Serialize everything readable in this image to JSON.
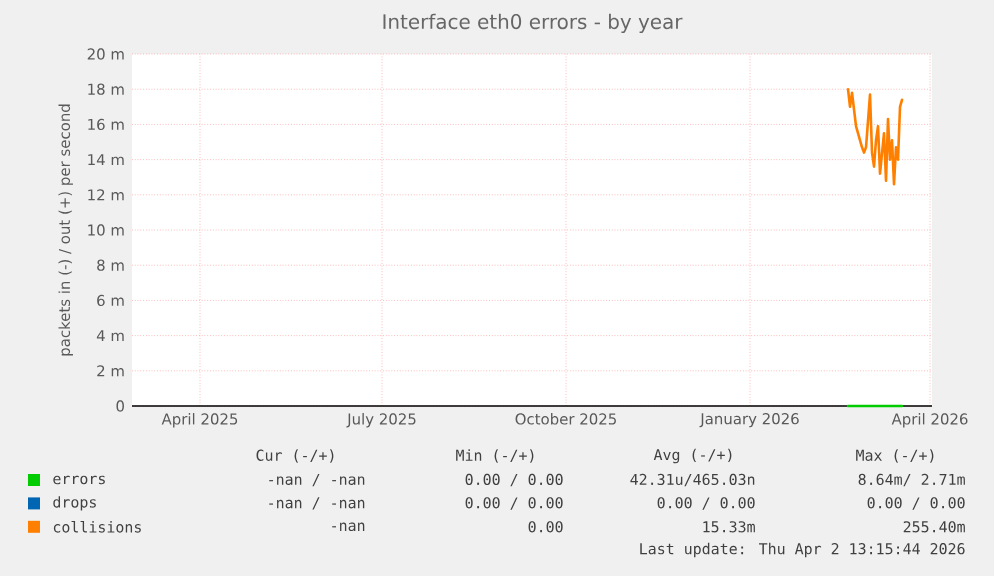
{
  "chart_data": {
    "type": "line",
    "title": "Interface eth0 errors - by year",
    "ylabel": "packets in (-) / out (+) per second",
    "xlim": [
      "2025-03-12",
      "2026-04-16"
    ],
    "xticks": [
      {
        "value": "2025-04-15",
        "label": "April 2025"
      },
      {
        "value": "2025-07-15",
        "label": "July 2025"
      },
      {
        "value": "2025-10-15",
        "label": "October 2025"
      },
      {
        "value": "2026-01-15",
        "label": "January 2026"
      },
      {
        "value": "2026-04-15",
        "label": "April 2026"
      }
    ],
    "ylim": [
      0,
      20
    ],
    "yticks": [
      0,
      {
        "value": 2,
        "label": "2 m"
      },
      {
        "value": 4,
        "label": "4 m"
      },
      {
        "value": 6,
        "label": "6 m"
      },
      {
        "value": 8,
        "label": "8 m"
      },
      {
        "value": 10,
        "label": "10 m"
      },
      {
        "value": 12,
        "label": "12 m"
      },
      {
        "value": 14,
        "label": "14 m"
      },
      {
        "value": 16,
        "label": "16 m"
      },
      {
        "value": 18,
        "label": "18 m"
      },
      {
        "value": 20,
        "label": "20 m"
      }
    ],
    "grid": true,
    "legend": "bottom",
    "marker": "none",
    "line_style": "solid",
    "series": [
      {
        "name": "errors",
        "color": "#00cc00",
        "x": [
          "2026-03-05",
          "2026-04-01"
        ],
        "values": [
          0,
          0
        ]
      },
      {
        "name": "drops",
        "color": "#0066b3"
      },
      {
        "name": "collisions",
        "color": "#ff8000",
        "x": [
          "2026-03-05",
          "2026-03-06",
          "2026-03-07",
          "2026-03-09",
          "2026-03-10",
          "2026-03-12",
          "2026-03-13",
          "2026-03-14",
          "2026-03-16",
          "2026-03-17",
          "2026-03-18",
          "2026-03-19",
          "2026-03-20",
          "2026-03-21",
          "2026-03-23",
          "2026-03-24",
          "2026-03-25",
          "2026-03-26",
          "2026-03-27",
          "2026-03-28",
          "2026-03-29",
          "2026-03-30",
          "2026-03-31",
          "2026-04-01"
        ],
        "values": [
          18.0,
          17.0,
          17.8,
          15.9,
          15.5,
          14.7,
          14.4,
          14.7,
          17.7,
          14.4,
          13.6,
          15.1,
          15.9,
          13.2,
          15.5,
          12.8,
          16.3,
          14.0,
          15.1,
          12.6,
          14.7,
          14.0,
          17.0,
          17.4
        ]
      }
    ],
    "annotations": [
      "Cur (-/+)",
      "Min (-/+)",
      "Avg (-/+)",
      "Max (-/+)",
      "-nan / -nan",
      "0.00 / 0.00",
      "42.31u/465.03n",
      "8.64m/ 2.71m",
      "-nan / -nan",
      "0.00 / 0.00",
      "0.00 / 0.00",
      "0.00 / 0.00",
      "-nan",
      "0.00",
      "15.33m",
      "255.40m",
      "Last update: Thu Apr  2 13:15:44 2026"
    ]
  }
}
